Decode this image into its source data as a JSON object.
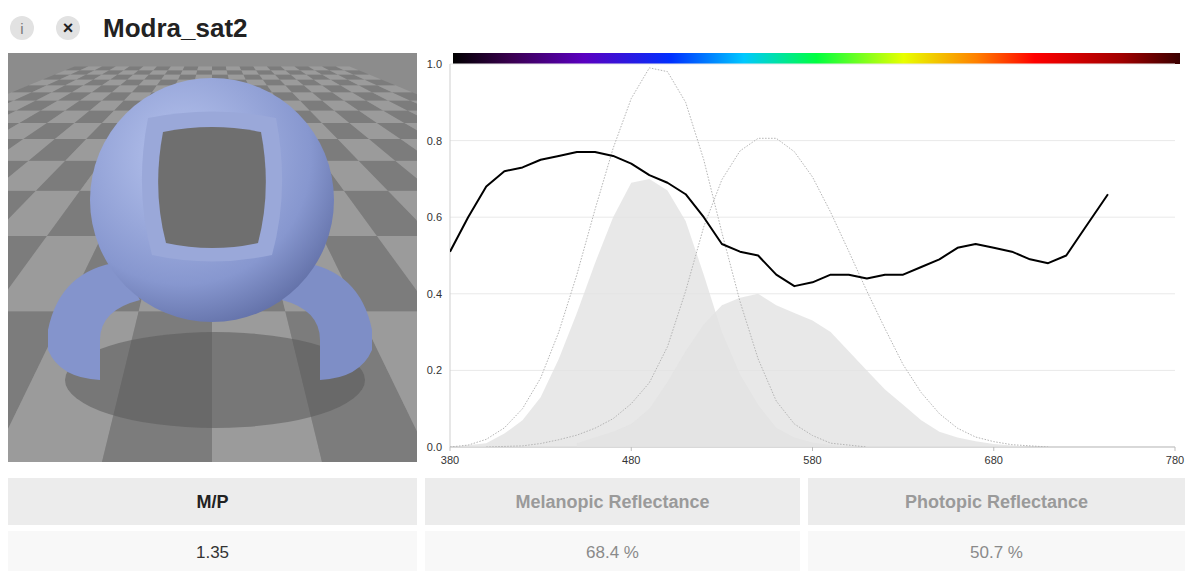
{
  "header": {
    "icons": [
      "i",
      "×"
    ],
    "title": "Modra_sat2"
  },
  "chart_data": {
    "type": "line",
    "xlim": [
      380,
      780
    ],
    "xticks": [
      380,
      480,
      580,
      680,
      780
    ],
    "ylim": [
      0,
      1
    ],
    "yticks": [
      {
        "value": 0,
        "label": "0.0"
      },
      0.2,
      0.4,
      0.6,
      0.8,
      {
        "value": 1,
        "label": "1.0"
      }
    ],
    "grid": true,
    "series": [
      {
        "type": "area",
        "color": "#e2e2e2",
        "x": [
          380,
          400,
          410,
          420,
          430,
          440,
          450,
          460,
          470,
          480,
          490,
          500,
          510,
          520,
          530,
          540,
          550,
          560,
          570,
          580,
          590,
          600
        ],
        "values": [
          0,
          0.01,
          0.035,
          0.07,
          0.13,
          0.23,
          0.35,
          0.48,
          0.6,
          0.69,
          0.7,
          0.67,
          0.59,
          0.45,
          0.3,
          0.19,
          0.11,
          0.05,
          0.025,
          0.012,
          0.005,
          0
        ]
      },
      {
        "type": "area",
        "color": "#e2e2e2",
        "x": [
          450,
          470,
          480,
          490,
          500,
          510,
          520,
          530,
          540,
          550,
          560,
          570,
          580,
          590,
          600,
          610,
          620,
          630,
          640,
          650,
          660,
          670,
          680,
          700
        ],
        "values": [
          0.01,
          0.04,
          0.06,
          0.1,
          0.17,
          0.25,
          0.32,
          0.37,
          0.39,
          0.4,
          0.37,
          0.35,
          0.33,
          0.3,
          0.25,
          0.2,
          0.15,
          0.11,
          0.07,
          0.04,
          0.025,
          0.015,
          0.008,
          0
        ]
      },
      {
        "type": "line",
        "color": "#b4b4b4",
        "line_style": "dotted",
        "x": [
          380,
          390,
          400,
          410,
          420,
          430,
          440,
          450,
          460,
          470,
          480,
          490,
          500,
          510,
          520,
          530,
          540,
          550,
          560,
          570,
          580,
          590,
          600,
          610
        ],
        "values": [
          0,
          0.005,
          0.02,
          0.05,
          0.1,
          0.18,
          0.3,
          0.45,
          0.62,
          0.78,
          0.91,
          0.99,
          0.98,
          0.9,
          0.75,
          0.56,
          0.38,
          0.23,
          0.12,
          0.06,
          0.03,
          0.01,
          0.005,
          0
        ]
      },
      {
        "type": "line",
        "color": "#b4b4b4",
        "line_style": "dotted",
        "x": [
          400,
          420,
          430,
          440,
          450,
          460,
          470,
          480,
          490,
          500,
          510,
          520,
          530,
          540,
          550,
          560,
          570,
          580,
          590,
          600,
          610,
          620,
          630,
          640,
          650,
          660,
          670,
          680,
          690,
          700,
          710
        ],
        "values": [
          0,
          0.003,
          0.009,
          0.019,
          0.031,
          0.049,
          0.074,
          0.113,
          0.168,
          0.262,
          0.407,
          0.575,
          0.698,
          0.773,
          0.806,
          0.806,
          0.771,
          0.705,
          0.613,
          0.511,
          0.407,
          0.309,
          0.215,
          0.142,
          0.087,
          0.049,
          0.026,
          0.014,
          0.006,
          0.003,
          0
        ]
      },
      {
        "type": "line",
        "color": "#000000",
        "line_style": "solid",
        "x": [
          380,
          390,
          400,
          410,
          420,
          430,
          440,
          450,
          460,
          470,
          480,
          490,
          500,
          510,
          520,
          530,
          540,
          550,
          560,
          570,
          580,
          590,
          600,
          610,
          620,
          630,
          640,
          650,
          660,
          670,
          680,
          690,
          700,
          710,
          720,
          730,
          743
        ],
        "values": [
          0.51,
          0.6,
          0.68,
          0.72,
          0.73,
          0.75,
          0.76,
          0.77,
          0.77,
          0.76,
          0.74,
          0.71,
          0.69,
          0.66,
          0.6,
          0.53,
          0.51,
          0.5,
          0.45,
          0.42,
          0.43,
          0.45,
          0.45,
          0.44,
          0.45,
          0.45,
          0.47,
          0.49,
          0.52,
          0.53,
          0.52,
          0.51,
          0.49,
          0.48,
          0.5,
          0.57,
          0.66
        ]
      }
    ]
  },
  "table": {
    "header": [
      "M/P",
      "Melanopic Reflectance",
      "Photopic Reflectance"
    ],
    "rows": [
      [
        "1.35",
        "68.4 %",
        "50.7 %"
      ]
    ]
  }
}
